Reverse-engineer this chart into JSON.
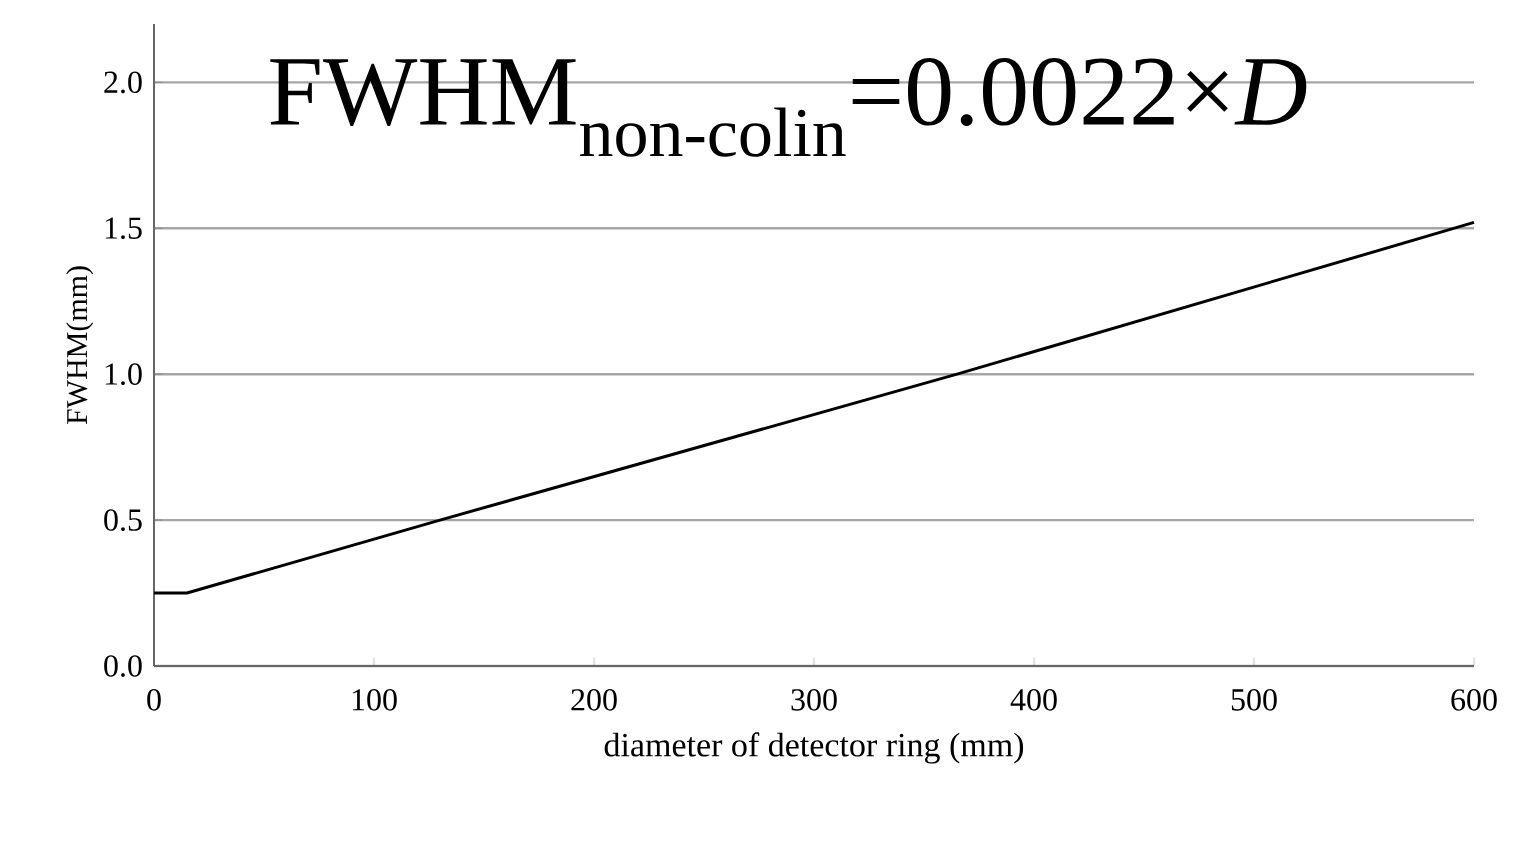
{
  "chart_data": {
    "type": "line",
    "xlabel": "diameter of  detector ring (mm)",
    "ylabel": "FWHM(mm)",
    "annotations": [
      "FWHM$_{non-colin}$=0.0022×*D*"
    ],
    "x": [
      0,
      15,
      130,
      365,
      600
    ],
    "series": [
      {
        "color": "#000000",
        "values": [
          0.25,
          0.25,
          0.5,
          1.0,
          1.52
        ]
      }
    ],
    "xlim": [
      0,
      600
    ],
    "ylim": [
      0,
      2.2
    ],
    "xticks": [
      0,
      100,
      200,
      300,
      400,
      500,
      600
    ],
    "yticks": [
      {
        "value": 0,
        "label": "0.0"
      },
      {
        "value": 0.5,
        "label": "0.5"
      },
      {
        "value": 1.0,
        "label": "1.0"
      },
      {
        "value": 1.5,
        "label": "1.5"
      },
      {
        "value": 2.0,
        "label": "2.0"
      }
    ],
    "grid": "y",
    "marker": "none",
    "line_style": "solid"
  }
}
